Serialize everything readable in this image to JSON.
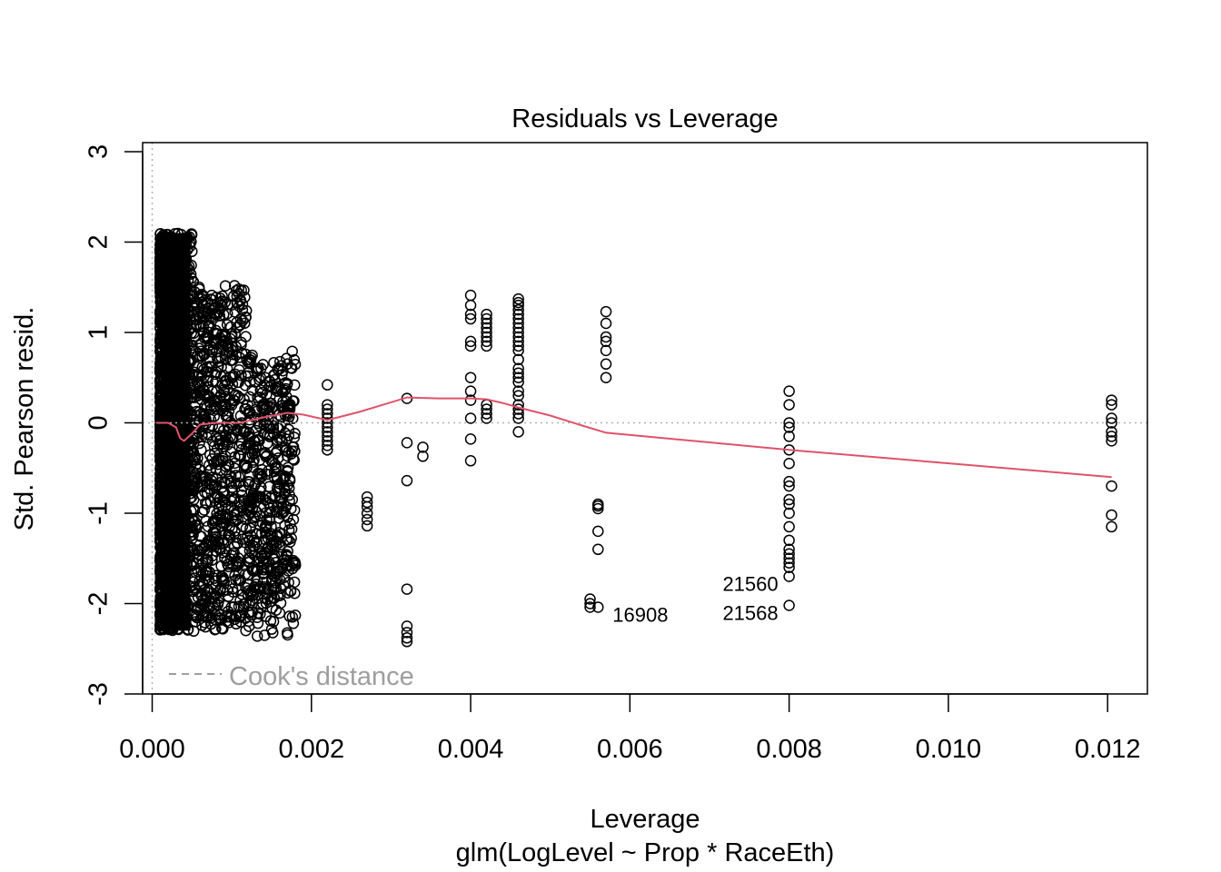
{
  "chart_data": {
    "type": "scatter",
    "title": "Residuals vs Leverage",
    "xlabel": "Leverage",
    "subtitle": "glm(LogLevel ~ Prop * RaceEth)",
    "ylabel": "Std. Pearson resid.",
    "xlim": [
      -0.00012,
      0.0125
    ],
    "ylim": [
      -3.0,
      3.1
    ],
    "x_ticks": [
      "0.000",
      "0.002",
      "0.004",
      "0.006",
      "0.008",
      "0.010",
      "0.012"
    ],
    "x_tick_values": [
      0,
      0.002,
      0.004,
      0.006,
      0.008,
      0.01,
      0.012
    ],
    "y_ticks": [
      "-3",
      "-2",
      "-1",
      "0",
      "1",
      "2",
      "3"
    ],
    "y_tick_values": [
      -3,
      -2,
      -1,
      0,
      1,
      2,
      3
    ],
    "reference_lines": {
      "horizontal": 0,
      "vertical": 0
    },
    "legend": {
      "label": "Cook's distance",
      "position": "bottom-left"
    },
    "smoother_color": "#DF536B",
    "point_color": "#000000",
    "smoother": {
      "x": [
        5e-05,
        0.0001,
        0.0002,
        0.0003,
        0.00035,
        0.0004,
        0.0005,
        0.0006,
        0.0008,
        0.0011,
        0.0014,
        0.0017,
        0.0019,
        0.0022,
        0.0026,
        0.0029,
        0.0032,
        0.0036,
        0.004,
        0.0042,
        0.0044,
        0.0046,
        0.005,
        0.0054,
        0.0057,
        0.008,
        0.01205
      ],
      "y": [
        0.0,
        0.0,
        0.0,
        -0.05,
        -0.17,
        -0.2,
        -0.12,
        -0.02,
        0.0,
        0.0,
        0.06,
        0.11,
        0.09,
        0.03,
        0.12,
        0.2,
        0.28,
        0.27,
        0.27,
        0.26,
        0.22,
        0.17,
        0.08,
        -0.03,
        -0.11,
        -0.3,
        -0.6
      ]
    },
    "point_columns": [
      {
        "x": 0.0042,
        "y": [
          1.2,
          1.15,
          1.1,
          1.05,
          1.0,
          0.95,
          0.9,
          0.85,
          0.2,
          0.15,
          0.1,
          0.05
        ]
      },
      {
        "x": 0.0046,
        "y": [
          1.37,
          1.33,
          1.3,
          1.25,
          1.2,
          1.15,
          1.1,
          1.05,
          1.0,
          0.95,
          0.9,
          0.85,
          0.8,
          0.7,
          0.6,
          0.55,
          0.5,
          0.45,
          0.35,
          0.3,
          0.2,
          0.15,
          0.1,
          0.05,
          -0.1
        ]
      },
      {
        "x": 0.004,
        "y": [
          1.41,
          1.3,
          1.2,
          1.15,
          0.9,
          0.85,
          0.5,
          0.35,
          0.25,
          0.05,
          -0.18,
          -0.42
        ]
      },
      {
        "x": 0.0055,
        "y": [
          -1.95,
          -2.0,
          -2.04
        ]
      },
      {
        "x": 0.0056,
        "y": [
          -0.9,
          -0.92,
          -0.95,
          -1.2,
          -1.4,
          -2.04
        ]
      },
      {
        "x": 0.0057,
        "y": [
          1.23,
          1.1,
          0.95,
          0.9,
          0.8,
          0.65,
          0.5
        ]
      },
      {
        "x": 0.008,
        "y": [
          0.35,
          0.2,
          0.0,
          -0.05,
          -0.15,
          -0.3,
          -0.45,
          -0.65,
          -0.7,
          -0.85,
          -0.9,
          -1.0,
          -1.15,
          -1.3,
          -1.4,
          -1.45,
          -1.5,
          -1.55,
          -1.6,
          -1.7,
          -2.02
        ]
      },
      {
        "x": 0.01205,
        "y": [
          0.25,
          0.2,
          0.05,
          0.0,
          -0.1,
          -0.15,
          -0.2,
          -0.7,
          -1.02,
          -1.15
        ]
      },
      {
        "x": 0.0032,
        "y": [
          0.27,
          -0.22,
          -0.64,
          -1.84,
          -2.25,
          -2.32,
          -2.38,
          -2.42
        ]
      },
      {
        "x": 0.0034,
        "y": [
          -0.27,
          -0.37
        ]
      },
      {
        "x": 0.0027,
        "y": [
          -0.82,
          -0.88,
          -0.93,
          -1.0,
          -1.07,
          -1.14
        ]
      },
      {
        "x": 0.0022,
        "y": [
          0.42,
          0.2,
          0.15,
          0.1,
          0.05,
          0.0,
          -0.05,
          -0.1,
          -0.15,
          -0.2,
          -0.25,
          -0.3
        ]
      }
    ],
    "labeled_points": [
      {
        "label": "16908",
        "x": 0.0056,
        "y": -2.04,
        "side": "right"
      },
      {
        "label": "21560",
        "x": 0.008,
        "y": -1.7,
        "side": "left"
      },
      {
        "label": "21568",
        "x": 0.008,
        "y": -2.02,
        "side": "left"
      }
    ]
  }
}
